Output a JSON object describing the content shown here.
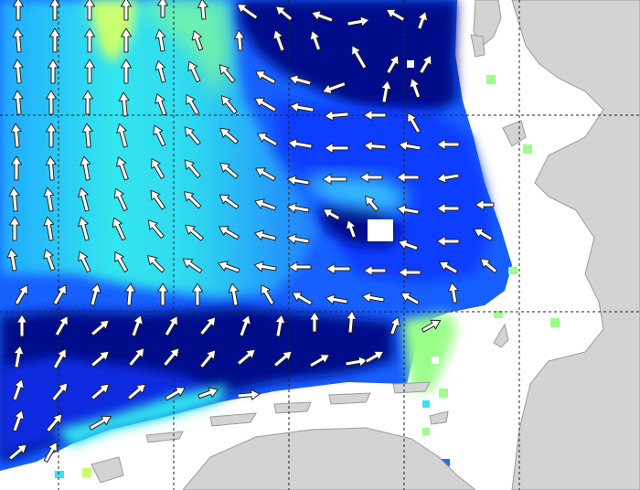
{
  "map": {
    "title": "",
    "legend": "",
    "colors": {
      "sea_background": "#ffffff",
      "land": "#d3d3d3",
      "land_outline": "#9a9a9a",
      "arrow_fill": "#ffffff",
      "arrow_outline": "#222222",
      "grid_line": "#222222",
      "field_ramp": [
        "#000b8a",
        "#0020d6",
        "#0a55ff",
        "#1ea0ff",
        "#33e6ee",
        "#9bff8a",
        "#fbff6a"
      ]
    },
    "grid": {
      "style": "dashed",
      "visible": true,
      "labels_shown": false
    },
    "field_description_shown": false
  }
}
